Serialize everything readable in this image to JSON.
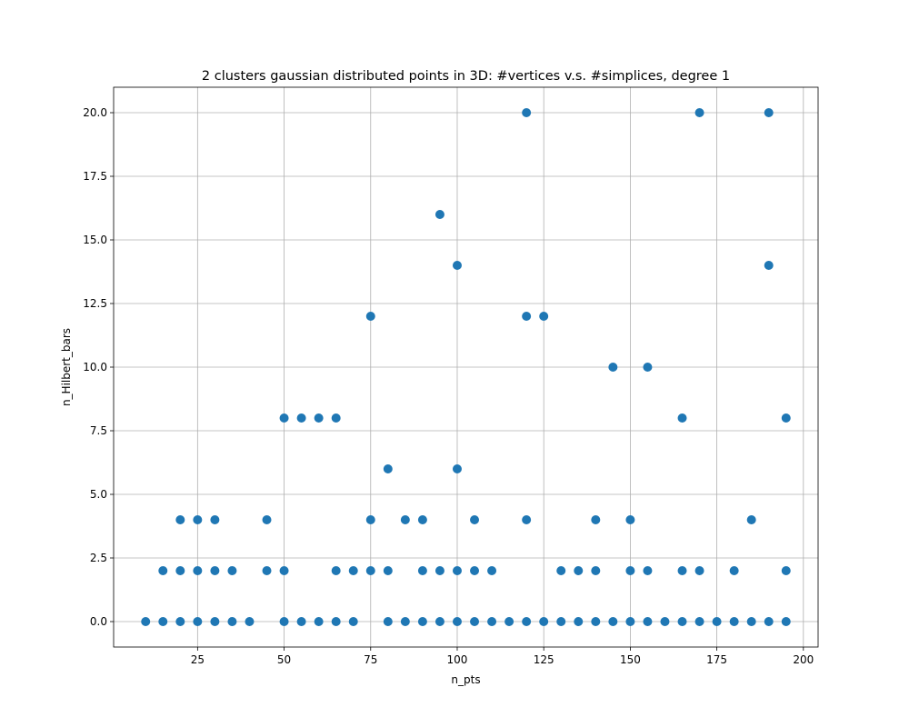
{
  "chart_data": {
    "type": "scatter",
    "title": "2 clusters gaussian distributed points in 3D: #vertices v.s. #simplices, degree 1",
    "xlabel": "n_pts",
    "ylabel": "n_Hilbert_bars",
    "xlim": [
      0.75,
      204.25
    ],
    "ylim": [
      -1,
      21
    ],
    "xticks": [
      25,
      50,
      75,
      100,
      125,
      150,
      175,
      200
    ],
    "xtick_labels": [
      "25",
      "50",
      "75",
      "100",
      "125",
      "150",
      "175",
      "200"
    ],
    "yticks": [
      0,
      2.5,
      5,
      7.5,
      10,
      12.5,
      15,
      17.5,
      20
    ],
    "ytick_labels": [
      "0.0",
      "2.5",
      "5.0",
      "7.5",
      "10.0",
      "12.5",
      "15.0",
      "17.5",
      "20.0"
    ],
    "grid": true,
    "marker_color": "#1f77b4",
    "points": [
      [
        10,
        0
      ],
      [
        15,
        0
      ],
      [
        15,
        2
      ],
      [
        20,
        0
      ],
      [
        20,
        2
      ],
      [
        20,
        4
      ],
      [
        25,
        0
      ],
      [
        25,
        2
      ],
      [
        25,
        4
      ],
      [
        30,
        0
      ],
      [
        30,
        2
      ],
      [
        30,
        4
      ],
      [
        35,
        0
      ],
      [
        35,
        2
      ],
      [
        40,
        0
      ],
      [
        45,
        2
      ],
      [
        45,
        4
      ],
      [
        50,
        0
      ],
      [
        50,
        2
      ],
      [
        50,
        8
      ],
      [
        55,
        0
      ],
      [
        55,
        8
      ],
      [
        60,
        0
      ],
      [
        60,
        8
      ],
      [
        65,
        0
      ],
      [
        65,
        2
      ],
      [
        65,
        8
      ],
      [
        70,
        0
      ],
      [
        70,
        2
      ],
      [
        75,
        2
      ],
      [
        75,
        4
      ],
      [
        75,
        12
      ],
      [
        80,
        0
      ],
      [
        80,
        2
      ],
      [
        80,
        6
      ],
      [
        85,
        0
      ],
      [
        85,
        4
      ],
      [
        90,
        0
      ],
      [
        90,
        2
      ],
      [
        90,
        4
      ],
      [
        95,
        0
      ],
      [
        95,
        2
      ],
      [
        95,
        16
      ],
      [
        100,
        0
      ],
      [
        100,
        2
      ],
      [
        100,
        6
      ],
      [
        100,
        14
      ],
      [
        105,
        0
      ],
      [
        105,
        2
      ],
      [
        105,
        4
      ],
      [
        110,
        0
      ],
      [
        110,
        2
      ],
      [
        115,
        0
      ],
      [
        120,
        0
      ],
      [
        120,
        4
      ],
      [
        120,
        12
      ],
      [
        120,
        20
      ],
      [
        125,
        0
      ],
      [
        125,
        12
      ],
      [
        130,
        0
      ],
      [
        130,
        2
      ],
      [
        135,
        0
      ],
      [
        135,
        2
      ],
      [
        140,
        0
      ],
      [
        140,
        2
      ],
      [
        140,
        4
      ],
      [
        145,
        0
      ],
      [
        145,
        10
      ],
      [
        150,
        0
      ],
      [
        150,
        2
      ],
      [
        150,
        4
      ],
      [
        155,
        0
      ],
      [
        155,
        2
      ],
      [
        155,
        10
      ],
      [
        160,
        0
      ],
      [
        165,
        0
      ],
      [
        165,
        2
      ],
      [
        165,
        8
      ],
      [
        170,
        0
      ],
      [
        170,
        2
      ],
      [
        170,
        20
      ],
      [
        175,
        0
      ],
      [
        180,
        0
      ],
      [
        180,
        2
      ],
      [
        185,
        0
      ],
      [
        185,
        4
      ],
      [
        190,
        0
      ],
      [
        190,
        14
      ],
      [
        190,
        20
      ],
      [
        195,
        0
      ],
      [
        195,
        2
      ],
      [
        195,
        8
      ]
    ]
  }
}
